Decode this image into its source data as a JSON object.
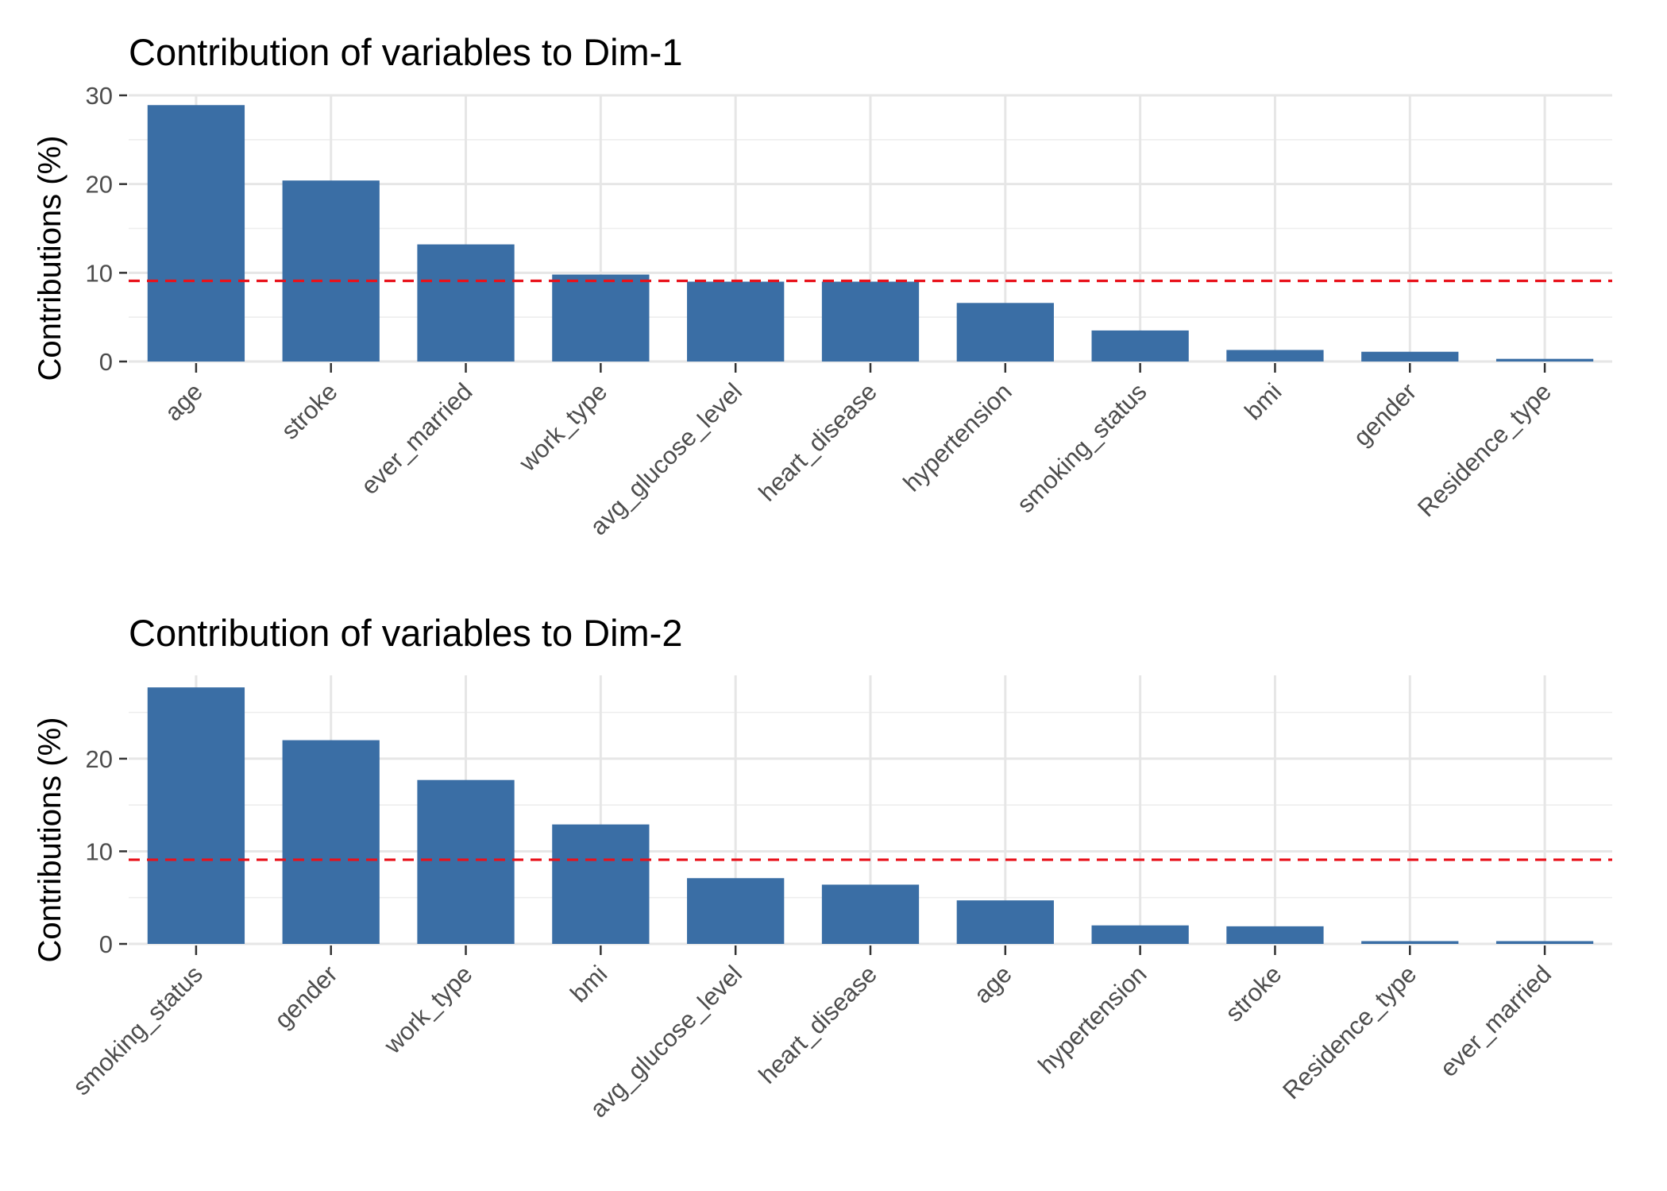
{
  "colors": {
    "bar": "#3a6ea5",
    "reference_line": "#e8121b",
    "grid": "#e6e6e6",
    "background": "#ffffff"
  },
  "chart_data": [
    {
      "type": "bar",
      "title": "Contribution of variables to Dim-1",
      "xlabel": "",
      "ylabel": "Contributions (%)",
      "categories": [
        "age",
        "stroke",
        "ever_married",
        "work_type",
        "avg_glucose_level",
        "heart_disease",
        "hypertension",
        "smoking_status",
        "bmi",
        "gender",
        "Residence_type"
      ],
      "values": [
        28.9,
        20.4,
        13.2,
        9.8,
        9.0,
        9.0,
        6.6,
        3.5,
        1.3,
        1.1,
        0.3
      ],
      "reference_line": 9.09,
      "ylim": [
        0,
        30
      ],
      "yticks": [
        0,
        10,
        20,
        30
      ],
      "grid": true
    },
    {
      "type": "bar",
      "title": "Contribution of variables to Dim-2",
      "xlabel": "",
      "ylabel": "Contributions (%)",
      "categories": [
        "smoking_status",
        "gender",
        "work_type",
        "bmi",
        "avg_glucose_level",
        "heart_disease",
        "age",
        "hypertension",
        "stroke",
        "Residence_type",
        "ever_married"
      ],
      "values": [
        27.7,
        22.0,
        17.7,
        12.9,
        7.1,
        6.4,
        4.7,
        2.0,
        1.9,
        0.3,
        0.3
      ],
      "reference_line": 9.09,
      "ylim": [
        0,
        29
      ],
      "yticks": [
        0,
        10,
        20
      ],
      "grid": true
    }
  ]
}
